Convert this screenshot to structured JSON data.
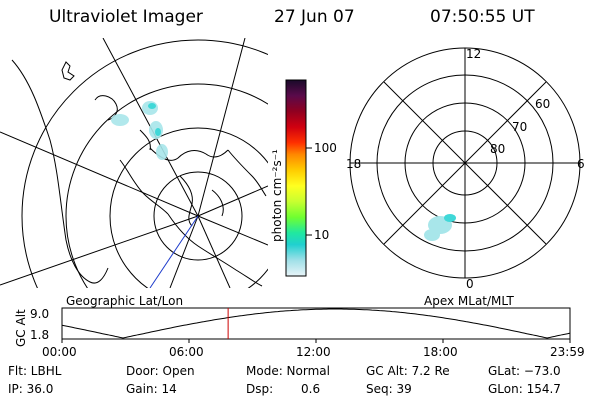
{
  "header": {
    "instrument": "Ultraviolet Imager",
    "date": "27 Jun 07",
    "time": "07:50:55 UT"
  },
  "colorbar": {
    "unit_label": "photon cm⁻²s⁻¹",
    "ticks": [
      "100",
      "10"
    ],
    "colors": [
      "#1a0a2a",
      "#2a0830",
      "#5a0a4a",
      "#900020",
      "#d00010",
      "#ff3000",
      "#ff8800",
      "#ffcc00",
      "#ffff20",
      "#c8ff30",
      "#70ff30",
      "#20e8a0",
      "#20d0d0",
      "#a0e0e8",
      "#e8f4f8"
    ]
  },
  "left_panel": {
    "label": "Geographic Lat/Lon"
  },
  "right_panel": {
    "label": "Apex MLat/MLT",
    "mlt_labels": {
      "top": "12",
      "left": "18",
      "right": "6",
      "bottom": "0"
    },
    "mlat_labels": [
      "60",
      "70",
      "80"
    ]
  },
  "altitude_plot": {
    "axis_label": "GC Alt",
    "y_ticks": [
      "9.0",
      "1.8"
    ],
    "x_ticks": [
      "00:00",
      "06:00",
      "12:00",
      "18:00",
      "23:59"
    ],
    "marker_time": "07:50:55",
    "marker_fraction": 0.327,
    "marker_color": "#cc0000"
  },
  "info": {
    "filter": "Flt: LBHL",
    "ip": "IP: 36.0",
    "door": "Door: Open",
    "gain": "Gain: 14",
    "mode": "Mode: Normal",
    "dsp_label": "Dsp:",
    "dsp_value": "0.6",
    "gc_alt": "GC Alt: 7.2 Re",
    "seq": "Seq: 39",
    "glat": "GLat: −73.0",
    "glon": "GLon: 154.7"
  }
}
